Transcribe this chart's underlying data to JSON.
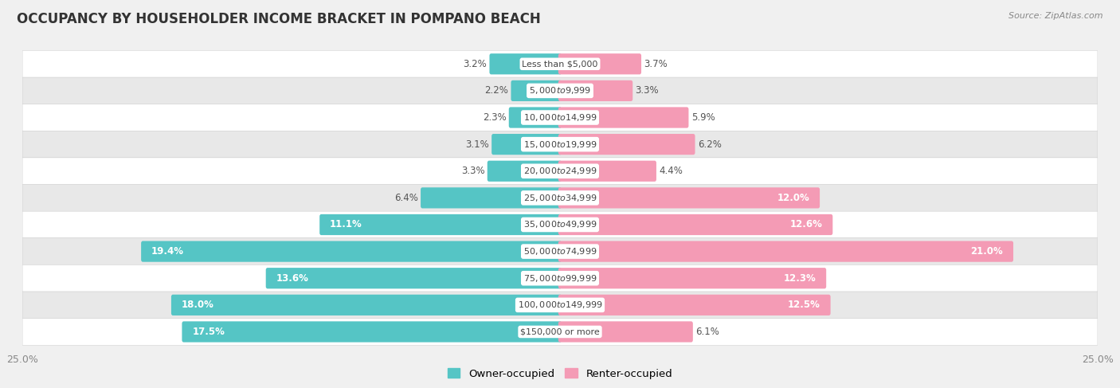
{
  "title": "OCCUPANCY BY HOUSEHOLDER INCOME BRACKET IN POMPANO BEACH",
  "source": "Source: ZipAtlas.com",
  "categories": [
    "Less than $5,000",
    "$5,000 to $9,999",
    "$10,000 to $14,999",
    "$15,000 to $19,999",
    "$20,000 to $24,999",
    "$25,000 to $34,999",
    "$35,000 to $49,999",
    "$50,000 to $74,999",
    "$75,000 to $99,999",
    "$100,000 to $149,999",
    "$150,000 or more"
  ],
  "owner_values": [
    3.2,
    2.2,
    2.3,
    3.1,
    3.3,
    6.4,
    11.1,
    19.4,
    13.6,
    18.0,
    17.5
  ],
  "renter_values": [
    3.7,
    3.3,
    5.9,
    6.2,
    4.4,
    12.0,
    12.6,
    21.0,
    12.3,
    12.5,
    6.1
  ],
  "owner_color": "#55C5C5",
  "renter_color": "#F49BB5",
  "owner_label": "Owner-occupied",
  "renter_label": "Renter-occupied",
  "xlim": 25.0,
  "bar_height": 0.62,
  "title_fontsize": 12,
  "label_fontsize": 8.5,
  "category_fontsize": 8.0,
  "axis_label_fontsize": 9
}
